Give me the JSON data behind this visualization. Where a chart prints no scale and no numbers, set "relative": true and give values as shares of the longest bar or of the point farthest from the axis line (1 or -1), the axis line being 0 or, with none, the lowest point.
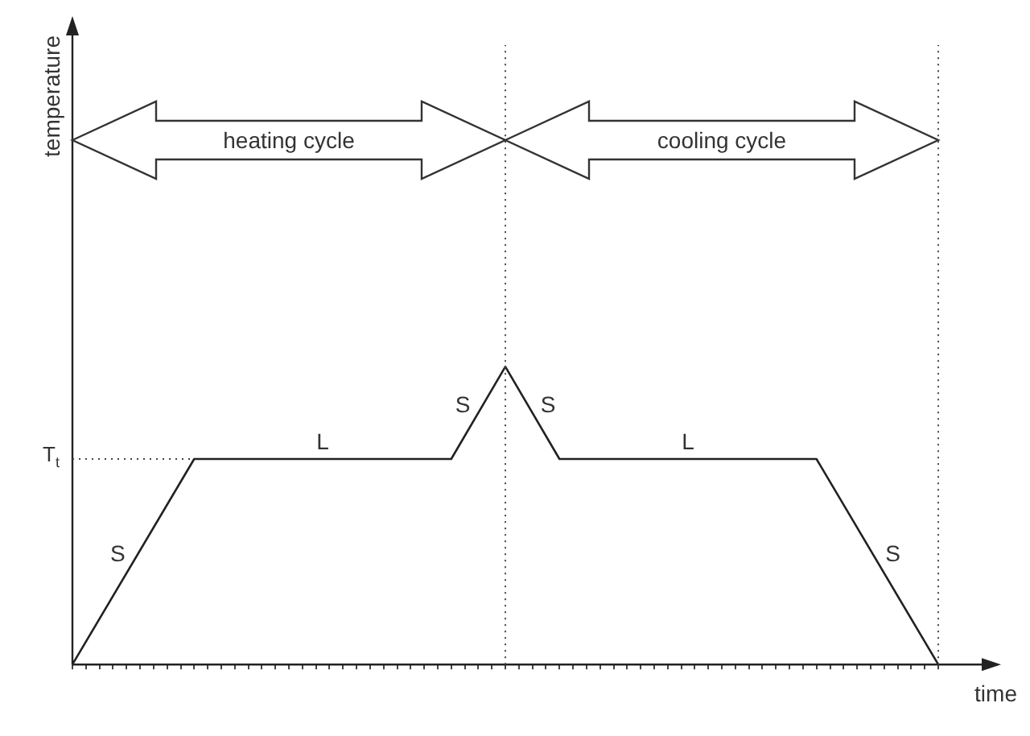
{
  "chart_data": {
    "type": "line",
    "relative": true,
    "xlabel": "time",
    "grid": false,
    "legend": false,
    "marker": "none",
    "line_style": "solid",
    "categories": [
      null,
      null,
      null,
      null,
      null,
      null,
      null,
      null,
      null,
      null,
      null,
      null,
      null,
      null,
      null,
      null,
      null,
      null,
      null,
      null,
      null,
      null,
      null,
      null,
      null,
      null,
      null,
      null,
      null,
      null,
      null,
      null,
      null,
      null,
      null,
      null,
      null,
      null,
      null,
      null,
      null,
      null,
      null,
      null,
      null,
      null,
      null,
      null,
      null,
      null,
      null,
      null,
      null,
      null,
      null,
      null,
      null,
      null,
      null,
      null,
      null,
      null,
      null,
      null,
      null
    ],
    "series": [
      {
        "color": "#222222",
        "values": [
          0,
          null,
          null,
          null,
          null,
          null,
          null,
          null,
          null,
          0.69,
          null,
          null,
          null,
          null,
          null,
          null,
          null,
          null,
          null,
          null,
          null,
          null,
          null,
          null,
          null,
          null,
          null,
          null,
          0.69,
          null,
          null,
          null,
          1,
          null,
          null,
          null,
          0.69,
          null,
          null,
          null,
          null,
          null,
          null,
          null,
          null,
          null,
          null,
          null,
          null,
          null,
          null,
          null,
          null,
          null,
          null,
          0.69,
          null,
          null,
          null,
          null,
          null,
          null,
          null,
          null,
          0
        ]
      }
    ],
    "ref_lines": [
      {
        "axis": "y",
        "value": 0.69,
        "label": "T$_{t}$",
        "line_style": "dotted",
        "color": "#444444"
      }
    ],
    "annotations": [
      "S",
      "L",
      "S",
      "S",
      "L",
      "S",
      "heating cycle",
      "cooling cycle",
      "temperature"
    ]
  }
}
